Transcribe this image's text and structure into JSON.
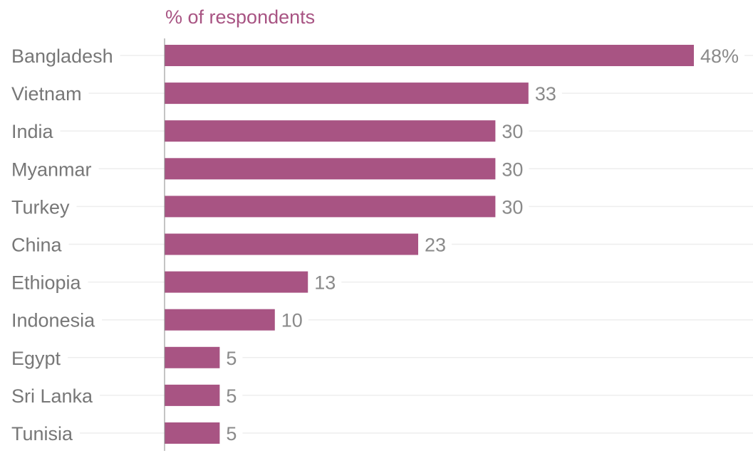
{
  "chart_data": {
    "type": "bar",
    "orientation": "horizontal",
    "title": "",
    "axis_title": "% of respondents",
    "categories": [
      "Bangladesh",
      "Vietnam",
      "India",
      "Myanmar",
      "Turkey",
      "China",
      "Ethiopia",
      "Indonesia",
      "Egypt",
      "Sri Lanka",
      "Tunisia"
    ],
    "values": [
      48,
      33,
      30,
      30,
      30,
      23,
      13,
      10,
      5,
      5,
      5
    ],
    "value_labels": [
      "48%",
      "33",
      "30",
      "30",
      "30",
      "23",
      "13",
      "10",
      "5",
      "5",
      "5"
    ],
    "xlim": [
      0,
      48
    ],
    "grid": true,
    "legend": "none",
    "colors": {
      "bar": "#a85483",
      "axis_title": "#a85483",
      "category_text": "#777777",
      "value_text": "#8a8a8a",
      "gridline": "#eeeeee",
      "axis_line": "#888888"
    }
  }
}
